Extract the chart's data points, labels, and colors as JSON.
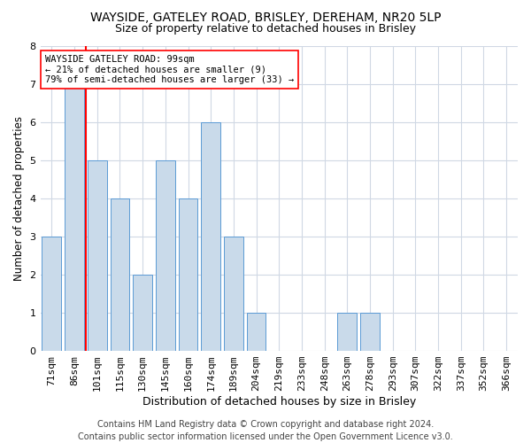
{
  "title1": "WAYSIDE, GATELEY ROAD, BRISLEY, DEREHAM, NR20 5LP",
  "title2": "Size of property relative to detached houses in Brisley",
  "xlabel": "Distribution of detached houses by size in Brisley",
  "ylabel": "Number of detached properties",
  "categories": [
    "71sqm",
    "86sqm",
    "101sqm",
    "115sqm",
    "130sqm",
    "145sqm",
    "160sqm",
    "174sqm",
    "189sqm",
    "204sqm",
    "219sqm",
    "233sqm",
    "248sqm",
    "263sqm",
    "278sqm",
    "293sqm",
    "307sqm",
    "322sqm",
    "337sqm",
    "352sqm",
    "366sqm"
  ],
  "values": [
    3,
    7,
    5,
    4,
    2,
    5,
    4,
    6,
    3,
    1,
    0,
    0,
    0,
    1,
    1,
    0,
    0,
    0,
    0,
    0,
    0
  ],
  "bar_color": "#c9daea",
  "bar_edge_color": "#5b9bd5",
  "grid_color": "#d0d8e4",
  "red_line_x": 1.5,
  "annotation_text": "WAYSIDE GATELEY ROAD: 99sqm\n← 21% of detached houses are smaller (9)\n79% of semi-detached houses are larger (33) →",
  "annotation_box_color": "white",
  "annotation_box_edge": "red",
  "footer1": "Contains HM Land Registry data © Crown copyright and database right 2024.",
  "footer2": "Contains public sector information licensed under the Open Government Licence v3.0.",
  "ylim": [
    0,
    8
  ],
  "yticks": [
    0,
    1,
    2,
    3,
    4,
    5,
    6,
    7,
    8
  ],
  "title1_fontsize": 10,
  "title2_fontsize": 9,
  "xlabel_fontsize": 9,
  "ylabel_fontsize": 8.5,
  "tick_fontsize": 8,
  "footer_fontsize": 7,
  "annotation_fontsize": 7.5
}
